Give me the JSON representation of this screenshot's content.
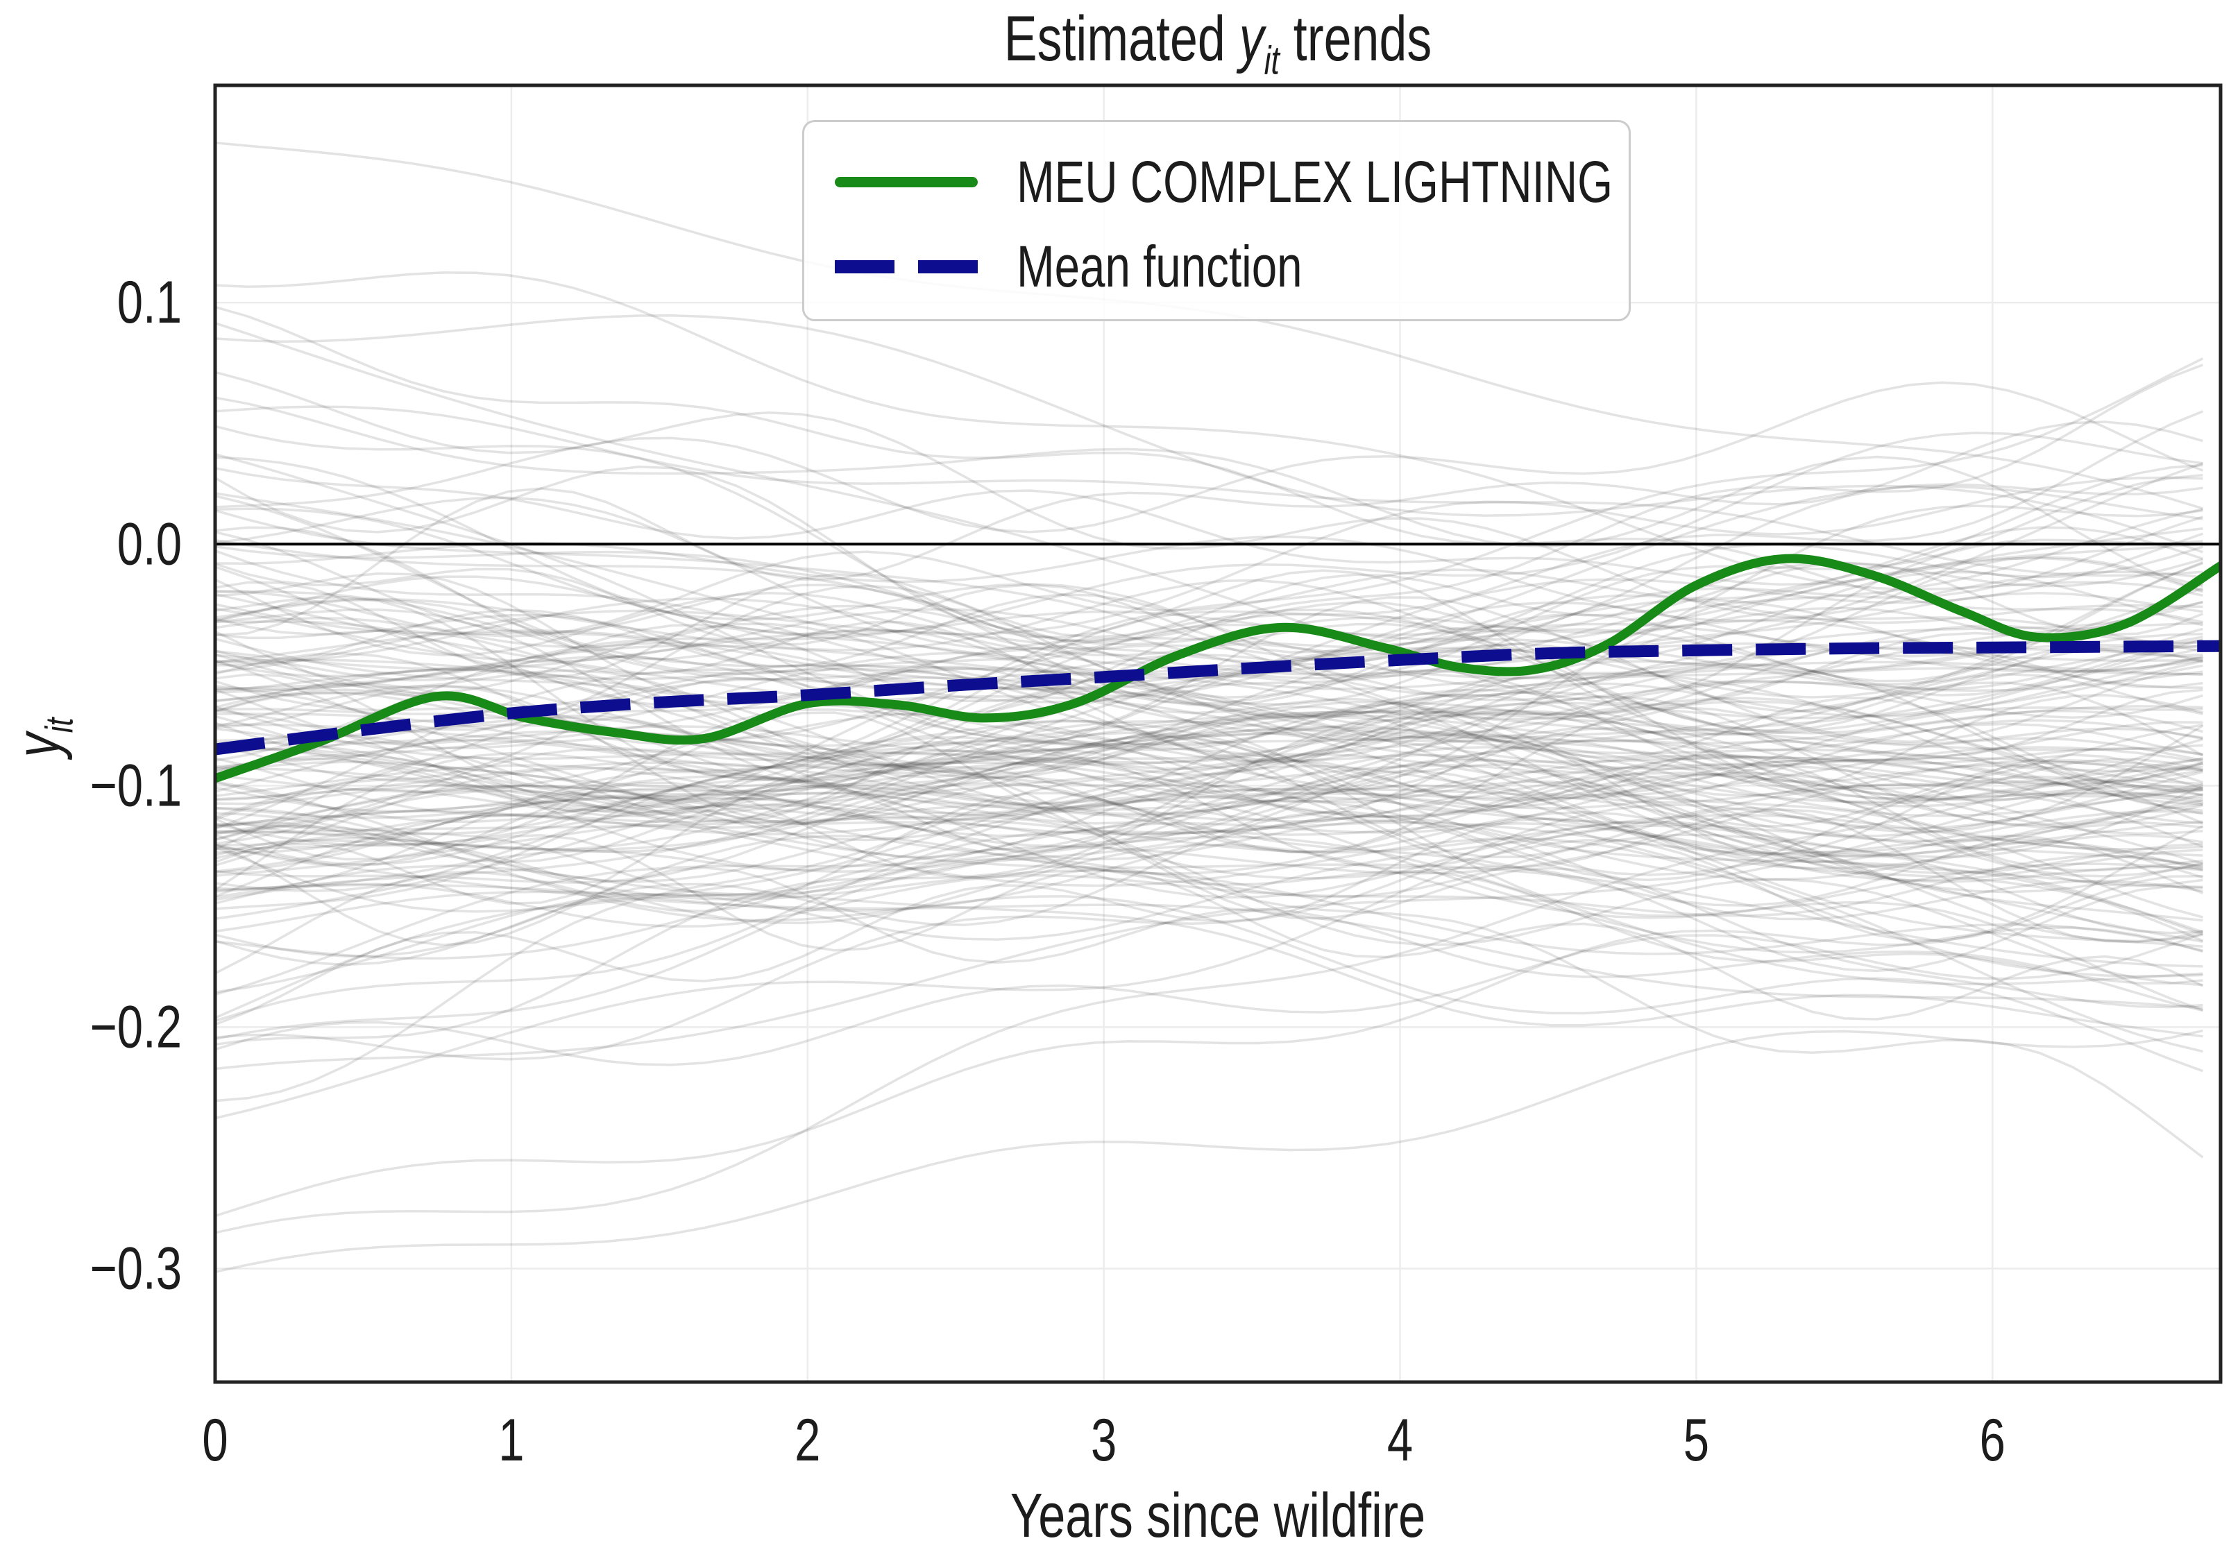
{
  "figure": {
    "title": {
      "prefix": "Estimated",
      "var": "y",
      "sub": "it",
      "suffix": "trends"
    },
    "x_axis": {
      "label": "Years since wildfire",
      "ticks": [
        {
          "v": 0,
          "label": "0"
        },
        {
          "v": 1,
          "label": "1"
        },
        {
          "v": 2,
          "label": "2"
        },
        {
          "v": 3,
          "label": "3"
        },
        {
          "v": 4,
          "label": "4"
        },
        {
          "v": 5,
          "label": "5"
        },
        {
          "v": 6,
          "label": "6"
        }
      ]
    },
    "y_axis": {
      "var": "y",
      "sub": "it",
      "ticks": [
        {
          "v": 0.1,
          "label": "0.1"
        },
        {
          "v": 0.0,
          "label": "0.0"
        },
        {
          "v": -0.1,
          "label": "−0.1"
        },
        {
          "v": -0.2,
          "label": "−0.2"
        },
        {
          "v": -0.3,
          "label": "−0.3"
        }
      ]
    },
    "legend": [
      {
        "name": "MEU COMPLEX LIGHTNING",
        "style": "solid"
      },
      {
        "name": "Mean function",
        "style": "dashed"
      }
    ],
    "colors": {
      "text": "#1c1c1c",
      "spine": "#222222",
      "grid": "#ececec",
      "zero_line": "#000000",
      "legend_border": "#cccccc",
      "highlight_green": "#178a17",
      "mean_navy": "#0d0d8f"
    }
  },
  "chart_data": {
    "type": "line",
    "title": "Estimated y_it trends",
    "xlabel": "Years since wildfire",
    "ylabel": "y_it",
    "xlim": [
      0,
      6.77
    ],
    "ylim": [
      -0.347,
      0.19
    ],
    "x_ticks": [
      0,
      1,
      2,
      3,
      4,
      5,
      6
    ],
    "y_ticks": [
      0.1,
      0.0,
      -0.1,
      -0.2,
      -0.3
    ],
    "grid": true,
    "legend_position": "upper center",
    "zero_line": 0.0,
    "series": [
      {
        "name": "MEU COMPLEX LIGHTNING",
        "color": "#178a17",
        "style": "solid",
        "width": 13,
        "x": [
          0,
          0.35,
          0.75,
          1.05,
          1.35,
          1.65,
          2.0,
          2.3,
          2.6,
          2.9,
          3.25,
          3.6,
          3.95,
          4.2,
          4.45,
          4.7,
          5.0,
          5.3,
          5.6,
          5.9,
          6.15,
          6.45,
          6.77
        ],
        "y": [
          -0.097,
          -0.082,
          -0.063,
          -0.072,
          -0.078,
          -0.0805,
          -0.066,
          -0.0665,
          -0.072,
          -0.066,
          -0.046,
          -0.0345,
          -0.043,
          -0.051,
          -0.052,
          -0.0415,
          -0.017,
          -0.006,
          -0.013,
          -0.028,
          -0.0385,
          -0.033,
          -0.009
        ]
      },
      {
        "name": "Mean function",
        "color": "#0d0d8f",
        "style": "dashed",
        "width": 17,
        "x": [
          0,
          0.5,
          1.0,
          1.5,
          2.0,
          2.5,
          3.0,
          3.5,
          4.0,
          4.5,
          5.0,
          5.5,
          6.0,
          6.5,
          6.77
        ],
        "y": [
          -0.085,
          -0.077,
          -0.07,
          -0.0655,
          -0.0625,
          -0.0585,
          -0.055,
          -0.0513,
          -0.048,
          -0.0452,
          -0.044,
          -0.0432,
          -0.0428,
          -0.0424,
          -0.0422
        ]
      }
    ],
    "background_series": {
      "description": "estimated trends of other individual wildfires (gray spaghetti lines)",
      "count": 175,
      "seed": 1337,
      "color": "#3c3c3c",
      "opacity": 0.14,
      "width": 3.5,
      "y_start_mean": -0.085,
      "y_start_sd": 0.075,
      "y_end_mean": -0.075,
      "y_end_sd": 0.06,
      "wiggle_amp": [
        0.004,
        0.017
      ],
      "wiggle_period": [
        1.6,
        4.4
      ]
    }
  }
}
